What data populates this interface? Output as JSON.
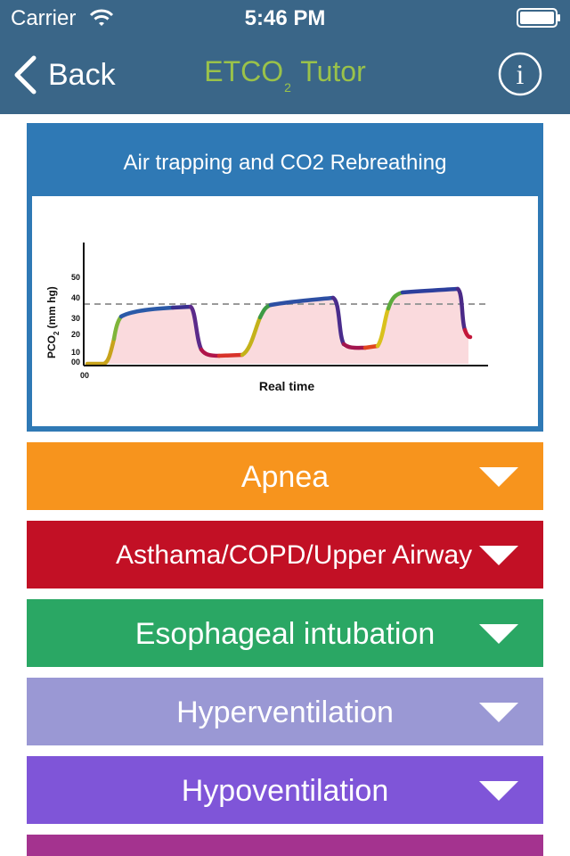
{
  "status_bar": {
    "carrier": "Carrier",
    "time": "5:46 PM"
  },
  "nav": {
    "back_label": "Back",
    "title_main": "ETCO",
    "title_sub": "2",
    "title_tail": "Tutor",
    "title_color": "#9ac24a",
    "bar_color": "#3a6688"
  },
  "card": {
    "title": "Air trapping and CO2 Rebreathing",
    "graph": {
      "ylabel_main": "PCO",
      "ylabel_sub": "2",
      "ylabel_unit": "(mm hg)",
      "y_ticks": [
        "50",
        "40",
        "30",
        "20",
        "10",
        "00"
      ],
      "origin_label": "00",
      "xlabel": "Real time"
    },
    "color": "#2f79b5"
  },
  "sections": [
    {
      "label": "Apnea",
      "color": "#f7941d"
    },
    {
      "label": "Asthama/COPD/Upper Airway",
      "color": "#c21025"
    },
    {
      "label": "Esophageal intubation",
      "color": "#2aa764"
    },
    {
      "label": "Hyperventilation",
      "color": "#9a98d4"
    },
    {
      "label": "Hypoventilation",
      "color": "#7f55d8"
    },
    {
      "label": "",
      "color": "#a4338f"
    }
  ],
  "icons": [
    "wifi-icon",
    "battery-icon",
    "back-chevron-icon",
    "info-icon",
    "chevron-down-icon"
  ]
}
